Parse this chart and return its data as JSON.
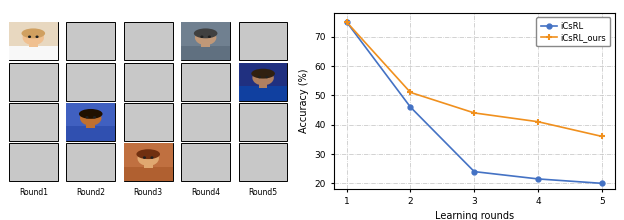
{
  "iCsRL": [
    75,
    46,
    24,
    21.5,
    20
  ],
  "iCsRL_ours": [
    75,
    51,
    44,
    41,
    36
  ],
  "x": [
    1,
    2,
    3,
    4,
    5
  ],
  "xlabel": "Learning rounds",
  "ylabel": "Accuracy (%)",
  "ylim": [
    18,
    78
  ],
  "xlim": [
    0.8,
    5.2
  ],
  "yticks": [
    20,
    30,
    40,
    50,
    60,
    70
  ],
  "xticks": [
    1,
    2,
    3,
    4,
    5
  ],
  "color_iCsRL": "#4472c4",
  "color_iCsRL_ours": "#f0901e",
  "grid_color": "#b0b0b0",
  "legend_iCsRL": "iCsRL",
  "legend_iCsRL_ours": "iCsRL_ours",
  "num_cols": 5,
  "num_rows": 4,
  "col_labels": [
    "Round1",
    "Round2",
    "Round3",
    "Round4",
    "Round5"
  ],
  "box_facecolor": "#c8c8c8",
  "box_edgecolor": "#000000",
  "image_positions": [
    {
      "col": 0,
      "row": 0
    },
    {
      "col": 1,
      "row": 2
    },
    {
      "col": 2,
      "row": 3
    },
    {
      "col": 3,
      "row": 0
    },
    {
      "col": 4,
      "row": 1
    }
  ],
  "face_data": {
    "0_0": {
      "bg": "#e8d8c0",
      "skin": "#f0c090",
      "hair": "#d0a060",
      "shirt": "#f8f8f8"
    },
    "1_2": {
      "bg": "#4060c0",
      "skin": "#c07030",
      "hair": "#201000",
      "shirt": "#3050b0"
    },
    "2_3": {
      "bg": "#c07040",
      "skin": "#e0a870",
      "hair": "#703010",
      "shirt": "#b06030"
    },
    "3_0": {
      "bg": "#708090",
      "skin": "#c09878",
      "hair": "#404040",
      "shirt": "#607080"
    },
    "4_1": {
      "bg": "#203080",
      "skin": "#b08060",
      "hair": "#302010",
      "shirt": "#1040a0"
    }
  }
}
